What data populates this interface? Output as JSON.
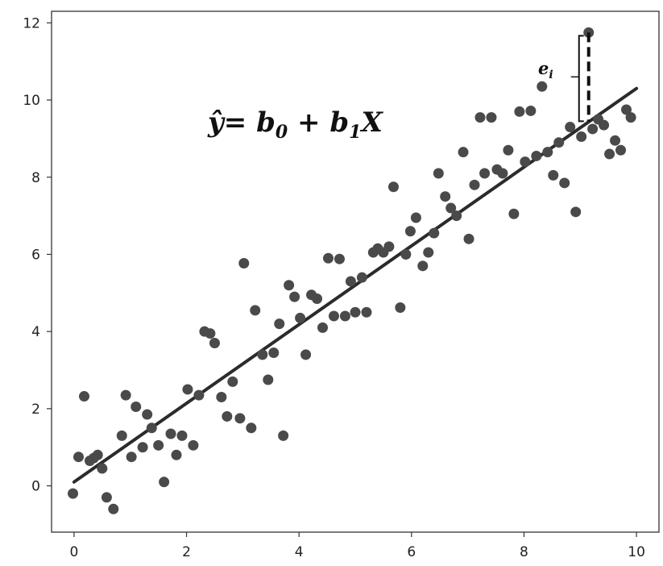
{
  "chart_data": {
    "type": "scatter",
    "title": "",
    "xlabel": "",
    "ylabel": "",
    "xlim": [
      -0.4,
      10.4
    ],
    "ylim": [
      -1.2,
      12.3
    ],
    "x_ticks": [
      "0",
      "2",
      "4",
      "6",
      "8",
      "10"
    ],
    "y_ticks": [
      "0",
      "2",
      "4",
      "6",
      "8",
      "10",
      "12"
    ],
    "grid": false,
    "equation": {
      "yhat": "ŷ",
      "rhs_part1": "= b",
      "sub0": "0",
      "rhs_part2": " + b",
      "sub1": "1",
      "rhs_part3": "X"
    },
    "residual_label": {
      "e": "e",
      "sub": "i"
    },
    "regression_line": {
      "x": [
        0,
        10
      ],
      "y": [
        0.1,
        10.3
      ]
    },
    "residual_point": {
      "x": 9.15,
      "y": 11.75,
      "fitted": 9.45
    },
    "points": [
      [
        -0.02,
        -0.2
      ],
      [
        0.08,
        0.75
      ],
      [
        0.18,
        2.32
      ],
      [
        0.28,
        0.65
      ],
      [
        0.35,
        0.72
      ],
      [
        0.42,
        0.8
      ],
      [
        0.5,
        0.45
      ],
      [
        0.58,
        -0.3
      ],
      [
        0.7,
        -0.6
      ],
      [
        0.85,
        1.3
      ],
      [
        0.92,
        2.35
      ],
      [
        1.02,
        0.75
      ],
      [
        1.1,
        2.05
      ],
      [
        1.22,
        1.0
      ],
      [
        1.3,
        1.85
      ],
      [
        1.38,
        1.5
      ],
      [
        1.5,
        1.05
      ],
      [
        1.6,
        0.1
      ],
      [
        1.72,
        1.35
      ],
      [
        1.82,
        0.8
      ],
      [
        1.92,
        1.3
      ],
      [
        2.02,
        2.5
      ],
      [
        2.12,
        1.05
      ],
      [
        2.22,
        2.35
      ],
      [
        2.32,
        4.0
      ],
      [
        2.42,
        3.95
      ],
      [
        2.5,
        3.7
      ],
      [
        2.62,
        2.3
      ],
      [
        2.72,
        1.8
      ],
      [
        2.82,
        2.7
      ],
      [
        2.95,
        1.75
      ],
      [
        3.02,
        5.77
      ],
      [
        3.15,
        1.5
      ],
      [
        3.22,
        4.55
      ],
      [
        3.35,
        3.4
      ],
      [
        3.45,
        2.75
      ],
      [
        3.55,
        3.45
      ],
      [
        3.65,
        4.2
      ],
      [
        3.72,
        1.3
      ],
      [
        3.82,
        5.2
      ],
      [
        3.92,
        4.9
      ],
      [
        4.02,
        4.35
      ],
      [
        4.12,
        3.4
      ],
      [
        4.22,
        4.95
      ],
      [
        4.32,
        4.85
      ],
      [
        4.42,
        4.1
      ],
      [
        4.52,
        5.9
      ],
      [
        4.62,
        4.4
      ],
      [
        4.72,
        5.88
      ],
      [
        4.82,
        4.4
      ],
      [
        4.92,
        5.3
      ],
      [
        5.0,
        4.5
      ],
      [
        5.12,
        5.4
      ],
      [
        5.2,
        4.5
      ],
      [
        5.32,
        6.05
      ],
      [
        5.4,
        6.15
      ],
      [
        5.5,
        6.05
      ],
      [
        5.6,
        6.2
      ],
      [
        5.68,
        7.75
      ],
      [
        5.8,
        4.62
      ],
      [
        5.9,
        6.0
      ],
      [
        5.98,
        6.6
      ],
      [
        6.08,
        6.95
      ],
      [
        6.2,
        5.7
      ],
      [
        6.3,
        6.05
      ],
      [
        6.4,
        6.55
      ],
      [
        6.48,
        8.1
      ],
      [
        6.6,
        7.5
      ],
      [
        6.7,
        7.2
      ],
      [
        6.8,
        7.0
      ],
      [
        6.92,
        8.65
      ],
      [
        7.02,
        6.4
      ],
      [
        7.12,
        7.8
      ],
      [
        7.22,
        9.55
      ],
      [
        7.3,
        8.1
      ],
      [
        7.42,
        9.55
      ],
      [
        7.52,
        8.2
      ],
      [
        7.62,
        8.1
      ],
      [
        7.72,
        8.7
      ],
      [
        7.82,
        7.05
      ],
      [
        7.92,
        9.7
      ],
      [
        8.02,
        8.4
      ],
      [
        8.12,
        9.72
      ],
      [
        8.22,
        8.55
      ],
      [
        8.32,
        10.35
      ],
      [
        8.42,
        8.65
      ],
      [
        8.52,
        8.05
      ],
      [
        8.62,
        8.9
      ],
      [
        8.72,
        7.85
      ],
      [
        8.82,
        9.3
      ],
      [
        8.92,
        7.1
      ],
      [
        9.02,
        9.05
      ],
      [
        9.22,
        9.25
      ],
      [
        9.32,
        9.5
      ],
      [
        9.42,
        9.35
      ],
      [
        9.52,
        8.6
      ],
      [
        9.62,
        8.95
      ],
      [
        9.72,
        8.7
      ],
      [
        9.82,
        9.75
      ],
      [
        9.9,
        9.55
      ],
      [
        9.15,
        11.75
      ]
    ]
  }
}
